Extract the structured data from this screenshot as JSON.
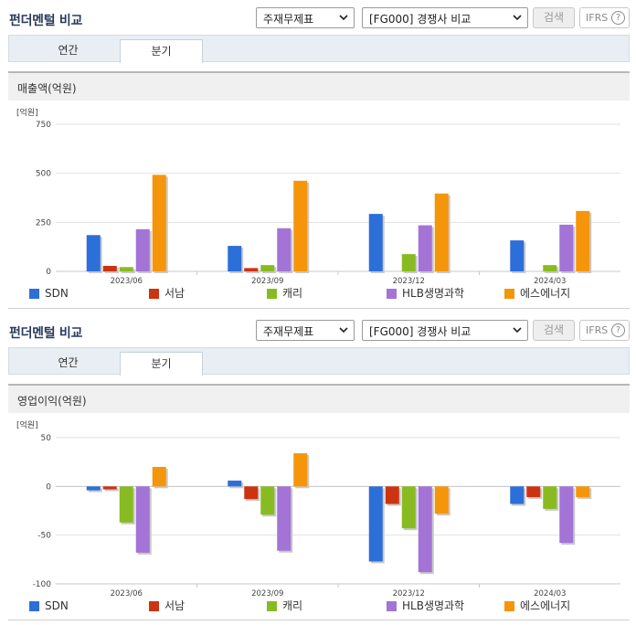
{
  "sections": [
    {
      "title": "펀더멘털 비교",
      "select_a": "주재무제표",
      "select_b": "[FG000] 경쟁사 비교",
      "search_label": "검색",
      "ifrs_label": "IFRS",
      "ifrs_help": "?",
      "tabs": [
        "연간",
        "분기"
      ],
      "active_tab": "분기",
      "metric_title": "매출액(억원)"
    },
    {
      "title": "펀더멘털 비교",
      "select_a": "주재무제표",
      "select_b": "[FG000] 경쟁사 비교",
      "search_label": "검색",
      "ifrs_label": "IFRS",
      "ifrs_help": "?",
      "tabs": [
        "연간",
        "분기"
      ],
      "active_tab": "분기",
      "metric_title": "영업이익(억원)"
    }
  ],
  "colors": {
    "SDN": "#2d6fd8",
    "서남": "#cc3311",
    "캐리": "#88bb22",
    "HLB생명과학": "#a374d6",
    "에스에너지": "#f5960a"
  },
  "chart_data": [
    {
      "type": "bar",
      "unit_label": "[억원]",
      "categories": [
        "2023/06",
        "2023/09",
        "2023/12",
        "2024/03"
      ],
      "ylim": [
        0,
        750
      ],
      "yticks": [
        0,
        250,
        500,
        750
      ],
      "grid": true,
      "legend": "bottom",
      "series": [
        {
          "name": "SDN",
          "values": [
            185,
            130,
            293,
            158
          ]
        },
        {
          "name": "서남",
          "values": [
            28,
            17,
            0,
            0
          ]
        },
        {
          "name": "캐리",
          "values": [
            22,
            32,
            88,
            32
          ]
        },
        {
          "name": "HLB생명과학",
          "values": [
            215,
            220,
            235,
            238
          ]
        },
        {
          "name": "에스에너지",
          "values": [
            492,
            462,
            397,
            308
          ]
        }
      ]
    },
    {
      "type": "bar",
      "unit_label": "[억원]",
      "categories": [
        "2023/06",
        "2023/09",
        "2023/12",
        "2024/03"
      ],
      "ylim": [
        -100,
        50
      ],
      "yticks": [
        -100,
        -50,
        0,
        50
      ],
      "grid": true,
      "legend": "bottom",
      "series": [
        {
          "name": "SDN",
          "values": [
            -4,
            6,
            -77,
            -18
          ]
        },
        {
          "name": "서남",
          "values": [
            -3,
            -13,
            -18,
            -11
          ]
        },
        {
          "name": "캐리",
          "values": [
            -37,
            -29,
            -43,
            -23
          ]
        },
        {
          "name": "HLB생명과학",
          "values": [
            -68,
            -66,
            -88,
            -58
          ]
        },
        {
          "name": "에스에너지",
          "values": [
            20,
            34,
            -28,
            -11
          ]
        }
      ]
    }
  ]
}
